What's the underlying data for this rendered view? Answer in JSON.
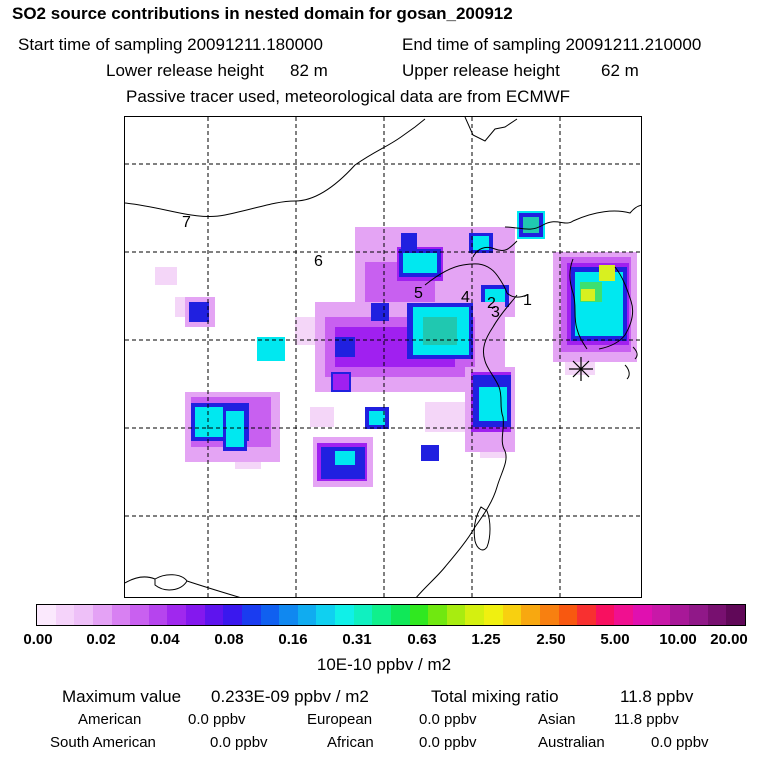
{
  "header": {
    "title": "SO2 source contributions in nested domain for gosan_200912",
    "start_label": "Start time of sampling 20091211.180000",
    "end_label": "End time of sampling 20091211.210000",
    "lower_label": "Lower release height",
    "lower_value": "82 m",
    "upper_label": "Upper release height",
    "upper_value": "62 m",
    "note": "Passive tracer used, meteorological data are from ECMWF"
  },
  "map": {
    "station_marker": "star-marker",
    "region_labels": [
      "1",
      "2",
      "3",
      "4",
      "5",
      "6",
      "7"
    ],
    "plume_colors": {
      "faint": "#f4d6f8",
      "light": "#e4a4f4",
      "mid": "#c860f0",
      "purple": "#a020f0",
      "blue": "#2020e0",
      "cyan": "#00e8f0",
      "teal": "#20c8b0",
      "green": "#3de070",
      "yellow": "#d8f020"
    }
  },
  "colorbar": {
    "colors": [
      "#fbe9fd",
      "#f5d3fa",
      "#eec0f8",
      "#e4a2f5",
      "#d880f2",
      "#c960f0",
      "#b644ee",
      "#a028ee",
      "#8418ee",
      "#5e14ee",
      "#3a18ee",
      "#1a3cf0",
      "#1060f0",
      "#1088f0",
      "#10acf0",
      "#10d0f0",
      "#10f0e8",
      "#10f0c0",
      "#10f08c",
      "#10e858",
      "#30e820",
      "#70e810",
      "#a8ec10",
      "#d4f010",
      "#f0f010",
      "#f8d010",
      "#f8a810",
      "#f88010",
      "#f85810",
      "#f83030",
      "#f81060",
      "#f01090",
      "#e010b0",
      "#c818a8",
      "#a81898",
      "#901888",
      "#781070",
      "#600858"
    ],
    "ticks": [
      "0.00",
      "0.02",
      "0.04",
      "0.08",
      "0.16",
      "0.31",
      "0.63",
      "1.25",
      "2.50",
      "5.00",
      "10.00",
      "20.00"
    ],
    "unit": "10E-10 ppbv / m2"
  },
  "stats": {
    "max_label": "Maximum value",
    "max_value": "0.233E-09 ppbv / m2",
    "total_label": "Total mixing ratio",
    "total_value": "11.8 ppbv",
    "american_label": "American",
    "american_value": "0.0 ppbv",
    "european_label": "European",
    "european_value": "0.0 ppbv",
    "asian_label": "Asian",
    "asian_value": "11.8 ppbv",
    "south_american_label": "South American",
    "south_american_value": "0.0 ppbv",
    "african_label": "African",
    "african_value": "0.0 ppbv",
    "australian_label": "Australian",
    "australian_value": "0.0 ppbv"
  }
}
